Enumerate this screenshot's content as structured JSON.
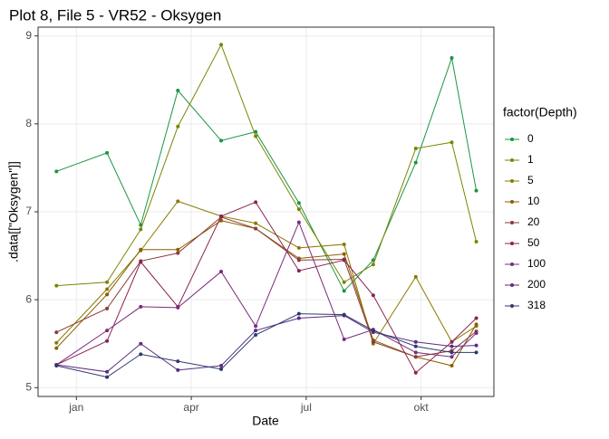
{
  "chart_data": {
    "type": "line",
    "title": "Plot 8, File 5 - VR52  -  Oksygen",
    "x_label": "Date",
    "y_label": ".data[[\"Oksygen\"]]",
    "legend_title": "factor(Depth)",
    "x": [
      0.48,
      1.8,
      2.68,
      3.65,
      4.78,
      5.68,
      6.81,
      7.99,
      8.75,
      9.86,
      10.8,
      11.44
    ],
    "xlim": [
      0.0,
      11.9
    ],
    "xticks": [
      {
        "value": 1,
        "label": "jan"
      },
      {
        "value": 4,
        "label": "apr"
      },
      {
        "value": 7,
        "label": "jul"
      },
      {
        "value": 10,
        "label": "okt"
      }
    ],
    "ylim": [
      4.9,
      9.1
    ],
    "yticks": [
      5,
      6,
      7,
      8,
      9
    ],
    "grid": true,
    "legend": "right",
    "series": [
      {
        "name": "0",
        "color": "#1a9641",
        "values": [
          7.46,
          7.67,
          6.85,
          8.38,
          7.81,
          7.91,
          7.1,
          6.1,
          6.45,
          7.56,
          8.75,
          7.24
        ]
      },
      {
        "name": "1",
        "color": "#7a8500",
        "values": [
          6.16,
          6.2,
          6.8,
          7.97,
          8.9,
          7.86,
          7.03,
          6.2,
          6.4,
          7.72,
          7.79,
          6.66
        ]
      },
      {
        "name": "5",
        "color": "#8a7a00",
        "values": [
          5.51,
          6.12,
          6.56,
          7.12,
          6.95,
          6.87,
          6.59,
          6.63,
          5.5,
          6.26,
          5.52,
          5.7
        ]
      },
      {
        "name": "10",
        "color": "#8b5e00",
        "values": [
          5.45,
          6.06,
          6.57,
          6.57,
          6.9,
          6.81,
          6.47,
          6.52,
          5.54,
          5.35,
          5.25,
          5.72
        ]
      },
      {
        "name": "20",
        "color": "#8b3a3a",
        "values": [
          5.63,
          5.9,
          6.44,
          6.53,
          6.94,
          6.81,
          6.45,
          6.46,
          5.52,
          5.35,
          5.42,
          5.64
        ]
      },
      {
        "name": "50",
        "color": "#8b2252",
        "values": [
          5.26,
          5.53,
          6.43,
          5.92,
          6.95,
          7.11,
          6.33,
          6.45,
          6.05,
          5.17,
          5.52,
          5.79
        ]
      },
      {
        "name": "100",
        "color": "#7b2b7b",
        "values": [
          5.26,
          5.65,
          5.92,
          5.91,
          6.32,
          5.7,
          6.88,
          5.55,
          5.66,
          5.4,
          5.35,
          5.62
        ]
      },
      {
        "name": "200",
        "color": "#5a2d82",
        "values": [
          5.26,
          5.18,
          5.5,
          5.2,
          5.25,
          5.65,
          5.79,
          5.82,
          5.63,
          5.52,
          5.47,
          5.48
        ]
      },
      {
        "name": "318",
        "color": "#2e3a6e",
        "values": [
          5.25,
          5.12,
          5.38,
          5.3,
          5.21,
          5.6,
          5.84,
          5.83,
          5.65,
          5.47,
          5.4,
          5.4
        ]
      }
    ]
  }
}
